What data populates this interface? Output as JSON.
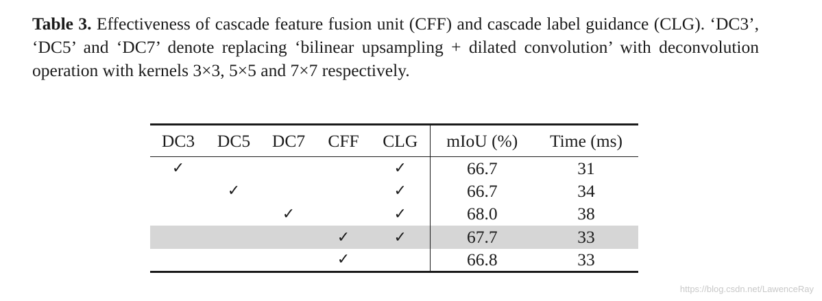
{
  "caption": {
    "label": "Table 3.",
    "text": "Effectiveness of cascade feature fusion unit (CFF) and cascade label guidance (CLG). ‘DC3’, ‘DC5’ and ‘DC7’ denote replacing ‘bilinear upsampling + dilated convolution’ with deconvolution operation with kernels 3×3, 5×5 and 7×7 respectively."
  },
  "table": {
    "headers": [
      "DC3",
      "DC5",
      "DC7",
      "CFF",
      "CLG",
      "mIoU (%)",
      "Time (ms)"
    ],
    "check_mark": "✓",
    "rows": [
      {
        "dc3": "✓",
        "dc5": "",
        "dc7": "",
        "cff": "",
        "clg": "✓",
        "miou": "66.7",
        "time": "31",
        "highlighted": false
      },
      {
        "dc3": "",
        "dc5": "✓",
        "dc7": "",
        "cff": "",
        "clg": "✓",
        "miou": "66.7",
        "time": "34",
        "highlighted": false
      },
      {
        "dc3": "",
        "dc5": "",
        "dc7": "✓",
        "cff": "",
        "clg": "✓",
        "miou": "68.0",
        "time": "38",
        "highlighted": false
      },
      {
        "dc3": "",
        "dc5": "",
        "dc7": "",
        "cff": "✓",
        "clg": "✓",
        "miou": "67.7",
        "time": "33",
        "highlighted": true
      },
      {
        "dc3": "",
        "dc5": "",
        "dc7": "",
        "cff": "✓",
        "clg": "",
        "miou": "66.8",
        "time": "33",
        "highlighted": false
      }
    ],
    "highlight_color": "#d6d6d6"
  },
  "watermark": "https://blog.csdn.net/LawenceRay"
}
